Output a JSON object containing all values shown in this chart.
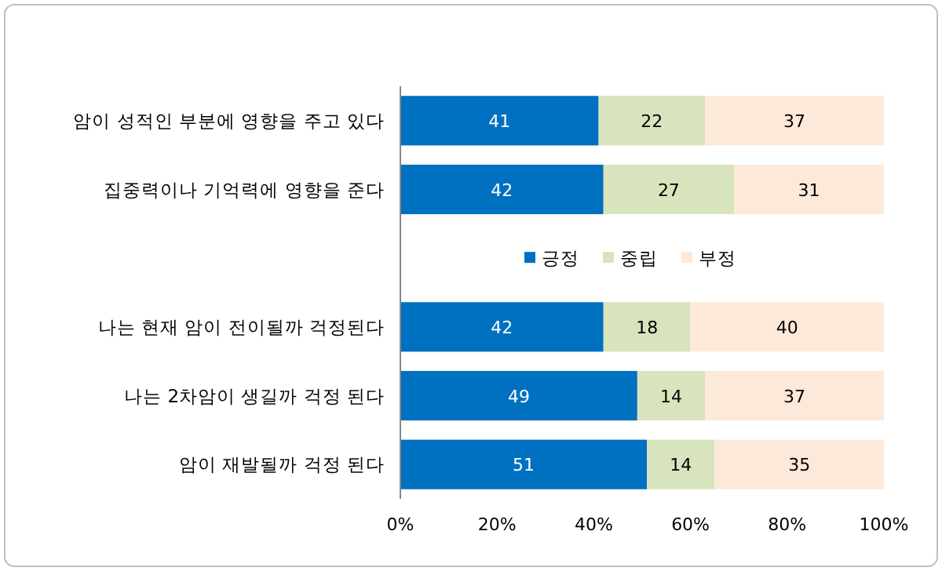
{
  "chart_data": {
    "type": "bar",
    "orientation": "horizontal",
    "stacked": true,
    "categories": [
      "암이 성적인 부분에 영향을 주고 있다",
      "집중력이나 기억력에 영향을 준다",
      null,
      "나는 현재 암이 전이될까 걱정된다",
      "나는 2차암이 생길까 걱정 된다",
      "암이 재발될까 걱정 된다"
    ],
    "series": [
      {
        "name": "긍정",
        "color": "#0070c0",
        "values": [
          41,
          42,
          null,
          42,
          49,
          51
        ]
      },
      {
        "name": "중립",
        "color": "#d7e4bd",
        "values": [
          22,
          27,
          null,
          18,
          14,
          14
        ]
      },
      {
        "name": "부정",
        "color": "#fde9d9",
        "values": [
          37,
          31,
          null,
          40,
          37,
          35
        ]
      }
    ],
    "xlim": [
      0,
      100
    ],
    "xticks": [
      {
        "value": 0,
        "label": "0%"
      },
      {
        "value": 20,
        "label": "20%"
      },
      {
        "value": 40,
        "label": "40%"
      },
      {
        "value": 60,
        "label": "60%"
      },
      {
        "value": 80,
        "label": "80%"
      },
      {
        "value": 100,
        "label": "100%"
      }
    ],
    "data_labels": true,
    "legend": "center",
    "grid": false
  }
}
